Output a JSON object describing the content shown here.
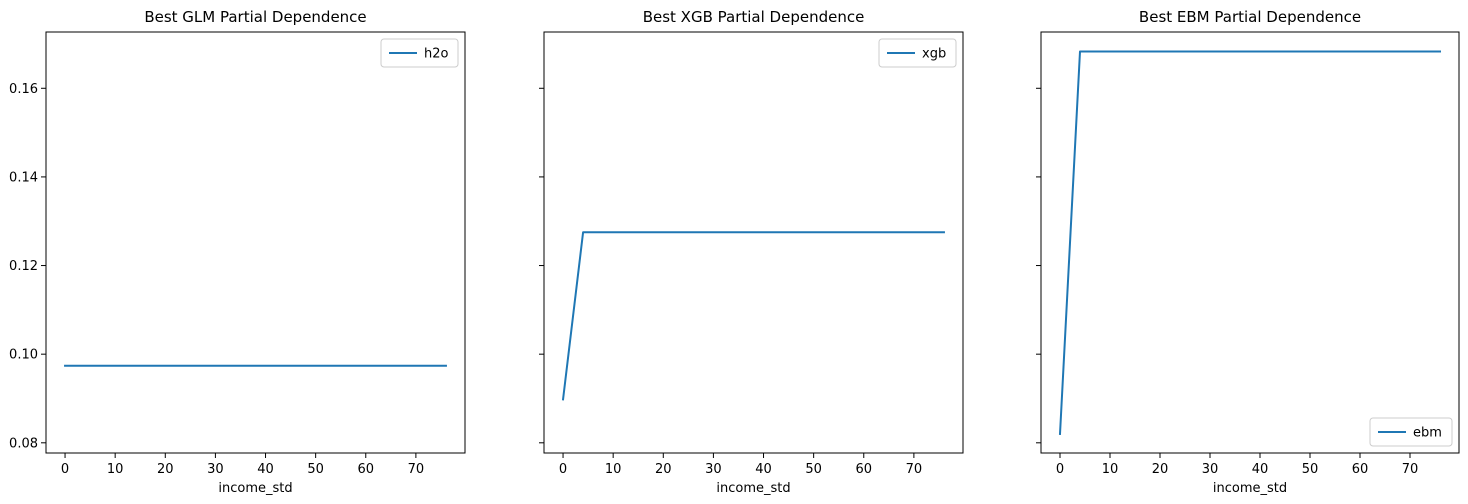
{
  "chart_data": [
    {
      "type": "line",
      "title": "Best GLM Partial Dependence",
      "xlabel": "income_std",
      "ylabel": "",
      "xlim": [
        -3.8,
        79.8
      ],
      "ylim": [
        0.0777,
        0.1727
      ],
      "xticks": [
        0,
        10,
        20,
        30,
        40,
        50,
        60,
        70
      ],
      "yticks": [
        0.08,
        0.1,
        0.12,
        0.14,
        0.16
      ],
      "ytick_labels": [
        "0.08",
        "0.10",
        "0.12",
        "0.14",
        "0.16"
      ],
      "show_yticklabels": true,
      "grid": false,
      "legend_loc": "upper right",
      "series": [
        {
          "name": "h2o",
          "color": "#1f77b4",
          "x": [
            0,
            4,
            76
          ],
          "y": [
            0.0974,
            0.0974,
            0.0974
          ]
        }
      ]
    },
    {
      "type": "line",
      "title": "Best XGB Partial Dependence",
      "xlabel": "income_std",
      "ylabel": "",
      "xlim": [
        -3.8,
        79.8
      ],
      "ylim": [
        0.0777,
        0.1727
      ],
      "xticks": [
        0,
        10,
        20,
        30,
        40,
        50,
        60,
        70
      ],
      "yticks": [
        0.08,
        0.1,
        0.12,
        0.14,
        0.16
      ],
      "ytick_labels": [
        "0.08",
        "0.10",
        "0.12",
        "0.14",
        "0.16"
      ],
      "show_yticklabels": false,
      "grid": false,
      "legend_loc": "upper right",
      "series": [
        {
          "name": "xgb",
          "color": "#1f77b4",
          "x": [
            0,
            4,
            76
          ],
          "y": [
            0.0898,
            0.1275,
            0.1275
          ]
        }
      ]
    },
    {
      "type": "line",
      "title": "Best EBM Partial Dependence",
      "xlabel": "income_std",
      "ylabel": "",
      "xlim": [
        -3.8,
        79.8
      ],
      "ylim": [
        0.0777,
        0.1727
      ],
      "xticks": [
        0,
        10,
        20,
        30,
        40,
        50,
        60,
        70
      ],
      "yticks": [
        0.08,
        0.1,
        0.12,
        0.14,
        0.16
      ],
      "ytick_labels": [
        "0.08",
        "0.10",
        "0.12",
        "0.14",
        "0.16"
      ],
      "show_yticklabels": false,
      "grid": false,
      "legend_loc": "lower right",
      "series": [
        {
          "name": "ebm",
          "color": "#1f77b4",
          "x": [
            0,
            4,
            76
          ],
          "y": [
            0.082,
            0.1683,
            0.1683
          ]
        }
      ]
    }
  ]
}
